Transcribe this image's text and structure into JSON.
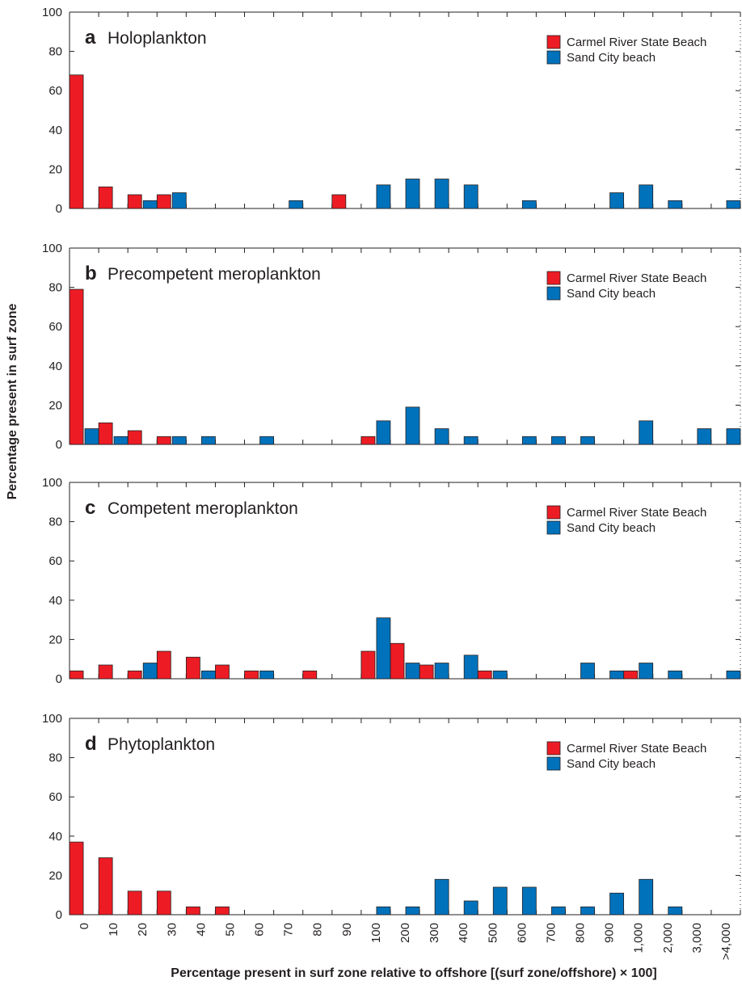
{
  "colors": {
    "carmel": "#ed1c24",
    "sand_city": "#0072bc",
    "axis": "#231f20"
  },
  "chart_data": {
    "type": "bar",
    "xlabel": "Percentage present in surf zone relative to offshore [(surf zone/offshore) × 100]",
    "ylabel": "Percentage present in surf zone",
    "categories": [
      "0",
      "10",
      "20",
      "30",
      "40",
      "50",
      "60",
      "70",
      "80",
      "90",
      "100",
      "200",
      "300",
      "400",
      "500",
      "600",
      "700",
      "800",
      "900",
      "1,000",
      "2,000",
      "3,000",
      ">4,000"
    ],
    "ylim": [
      0,
      100
    ],
    "yticks": [
      "0",
      "20",
      "40",
      "60",
      "80",
      "100"
    ],
    "legend": {
      "position": "top-right",
      "entries": [
        "Carmel River State Beach",
        "Sand City beach"
      ]
    },
    "panels": [
      {
        "letter": "a",
        "title": "Holoplankton",
        "series": [
          {
            "name": "Carmel River State Beach",
            "values": [
              68,
              11,
              7,
              7,
              0,
              0,
              0,
              0,
              0,
              7,
              0,
              0,
              0,
              0,
              0,
              0,
              0,
              0,
              0,
              0,
              0,
              0,
              0
            ]
          },
          {
            "name": "Sand City beach",
            "values": [
              0,
              0,
              4,
              8,
              0,
              0,
              0,
              4,
              0,
              0,
              12,
              15,
              15,
              12,
              0,
              4,
              0,
              0,
              8,
              12,
              4,
              0,
              4
            ]
          }
        ]
      },
      {
        "letter": "b",
        "title": "Precompetent meroplankton",
        "series": [
          {
            "name": "Carmel River State Beach",
            "values": [
              79,
              11,
              7,
              4,
              0,
              0,
              0,
              0,
              0,
              0,
              4,
              0,
              0,
              0,
              0,
              0,
              0,
              0,
              0,
              0,
              0,
              0,
              0
            ]
          },
          {
            "name": "Sand City beach",
            "values": [
              8,
              4,
              0,
              4,
              4,
              0,
              4,
              0,
              0,
              0,
              12,
              19,
              8,
              4,
              0,
              4,
              4,
              4,
              0,
              12,
              0,
              8,
              8
            ]
          }
        ]
      },
      {
        "letter": "c",
        "title": "Competent meroplankton",
        "series": [
          {
            "name": "Carmel River State Beach",
            "values": [
              4,
              7,
              4,
              14,
              11,
              7,
              4,
              0,
              4,
              0,
              14,
              18,
              7,
              0,
              4,
              0,
              0,
              0,
              0,
              4,
              0,
              0,
              0
            ]
          },
          {
            "name": "Sand City beach",
            "values": [
              0,
              0,
              8,
              0,
              4,
              0,
              4,
              0,
              0,
              0,
              31,
              8,
              8,
              12,
              4,
              0,
              0,
              8,
              4,
              8,
              4,
              0,
              4
            ]
          }
        ]
      },
      {
        "letter": "d",
        "title": "Phytoplankton",
        "series": [
          {
            "name": "Carmel River State Beach",
            "values": [
              37,
              29,
              12,
              12,
              4,
              4,
              0,
              0,
              0,
              0,
              0,
              0,
              0,
              0,
              0,
              0,
              0,
              0,
              0,
              0,
              0,
              0,
              0
            ]
          },
          {
            "name": "Sand City beach",
            "values": [
              0,
              0,
              0,
              0,
              0,
              0,
              0,
              0,
              0,
              0,
              4,
              4,
              18,
              7,
              14,
              14,
              4,
              4,
              11,
              18,
              4,
              0,
              0
            ]
          }
        ]
      }
    ]
  }
}
